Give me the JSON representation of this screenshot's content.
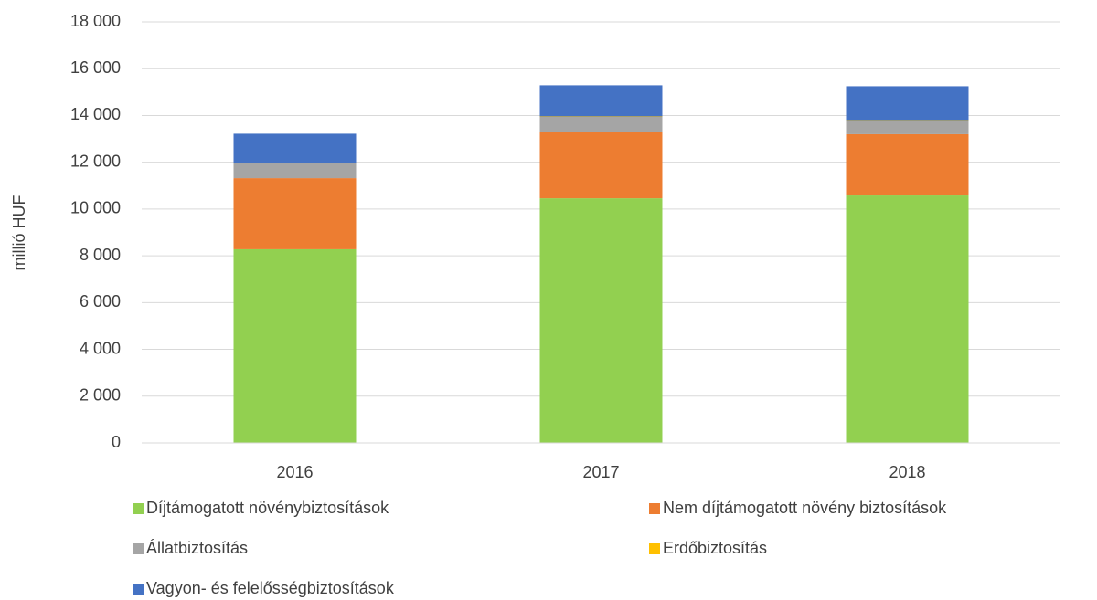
{
  "chart_data": {
    "type": "stacked_bar",
    "ylabel": "millió HUF",
    "categories": [
      "2016",
      "2017",
      "2018"
    ],
    "series": [
      {
        "name": "Díjtámogatott növénybiztosítások",
        "color": "#92d050",
        "values": [
          8280,
          10460,
          10580
        ]
      },
      {
        "name": "Nem díjtámogatott növény biztosítások",
        "color": "#ed7d31",
        "values": [
          3040,
          2820,
          2620
        ]
      },
      {
        "name": "Állatbiztosítás",
        "color": "#a5a5a5",
        "values": [
          630,
          660,
          580
        ]
      },
      {
        "name": "Erdőbiztosítás",
        "color": "#ffc000",
        "values": [
          20,
          20,
          20
        ]
      },
      {
        "name": "Vagyon- és felelősségbiztosítások",
        "color": "#4472c4",
        "values": [
          1250,
          1330,
          1450
        ]
      }
    ],
    "ylim": [
      0,
      18000
    ],
    "yticks": [
      0,
      {
        "value": 2000,
        "label": "2 000"
      },
      {
        "value": 4000,
        "label": "4 000"
      },
      {
        "value": 6000,
        "label": "6 000"
      },
      {
        "value": 8000,
        "label": "8 000"
      },
      {
        "value": 10000,
        "label": "10 000"
      },
      {
        "value": 12000,
        "label": "12 000"
      },
      {
        "value": 14000,
        "label": "14 000"
      },
      {
        "value": 16000,
        "label": "16 000"
      },
      {
        "value": 18000,
        "label": "18 000"
      }
    ],
    "grid": true
  }
}
